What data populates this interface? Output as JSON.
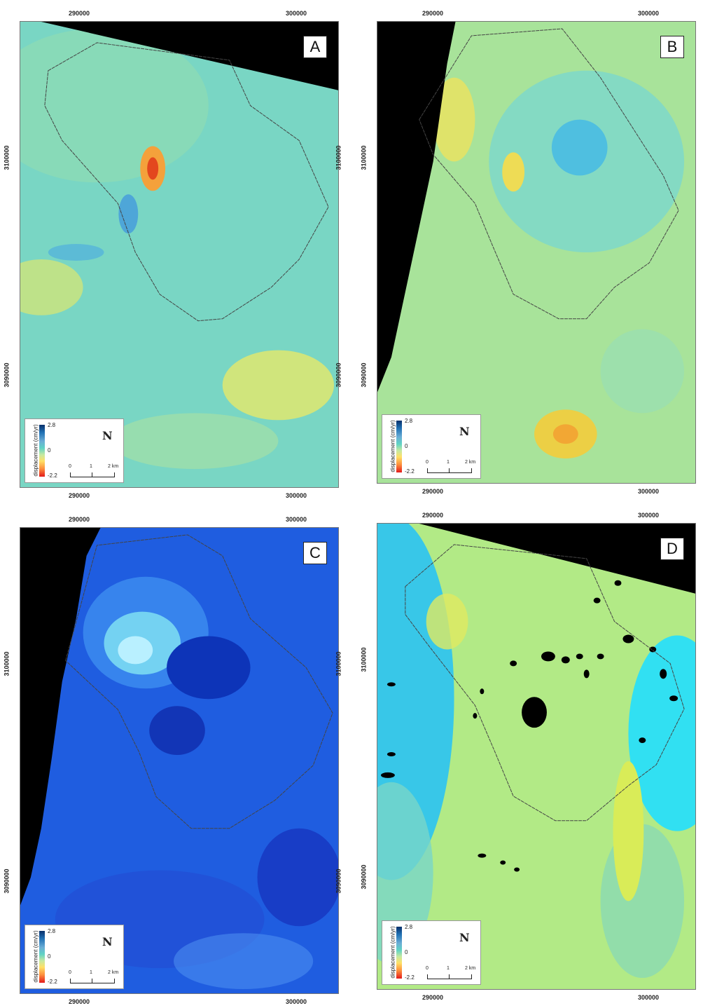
{
  "panels": [
    {
      "id": "A",
      "label": "A",
      "mask": "top"
    },
    {
      "id": "B",
      "label": "B",
      "mask": "left"
    },
    {
      "id": "C",
      "label": "C",
      "mask": "left"
    },
    {
      "id": "D",
      "label": "D",
      "mask": "top"
    }
  ],
  "axes": {
    "x_ticks": [
      "290000",
      "300000"
    ],
    "y_ticks": [
      "3100000",
      "3090000"
    ]
  },
  "legend": {
    "title": "displacement (cm/yr)",
    "max": "2.8",
    "mid": "0",
    "min": "-2.2",
    "north": "N",
    "scale": {
      "s0": "0",
      "s1": "1",
      "s2": "2 km"
    }
  },
  "colors": {
    "positive_max": "#08306b",
    "zero": "#5fd3c4",
    "negative_min": "#e31a1c",
    "no_data": "#000000"
  }
}
